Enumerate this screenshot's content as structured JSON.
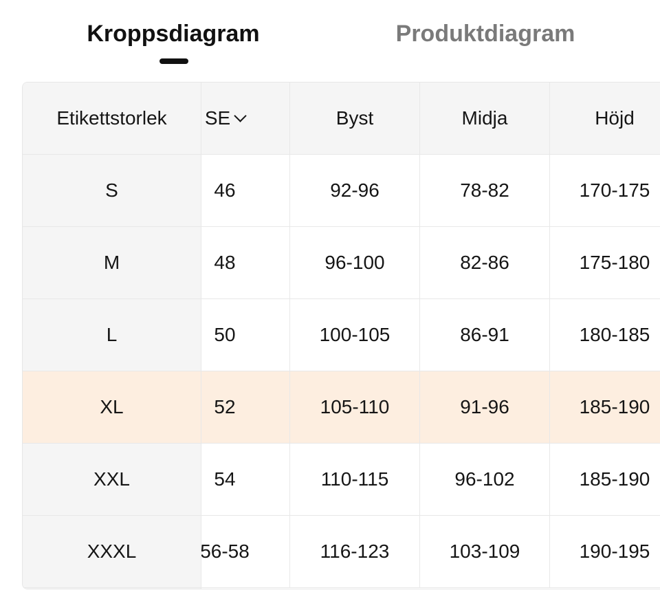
{
  "tabs": [
    {
      "label": "Kroppsdiagram",
      "active": true
    },
    {
      "label": "Produktdiagram",
      "active": false
    }
  ],
  "table": {
    "frozen_header": "Etikettstorlek",
    "headers": [
      "SE",
      "Byst",
      "Midja",
      "Höjd"
    ],
    "region_selector_icon": "chevron-down-icon",
    "highlight_color": "#fdeee0",
    "highlighted_row": "XL",
    "rows": [
      {
        "size": "S",
        "cells": [
          "46",
          "92-96",
          "78-82",
          "170-175"
        ]
      },
      {
        "size": "M",
        "cells": [
          "48",
          "96-100",
          "82-86",
          "175-180"
        ]
      },
      {
        "size": "L",
        "cells": [
          "50",
          "100-105",
          "86-91",
          "180-185"
        ]
      },
      {
        "size": "XL",
        "cells": [
          "52",
          "105-110",
          "91-96",
          "185-190"
        ]
      },
      {
        "size": "XXL",
        "cells": [
          "54",
          "110-115",
          "96-102",
          "185-190"
        ]
      },
      {
        "size": "XXXL",
        "cells": [
          "56-58",
          "116-123",
          "103-109",
          "190-195"
        ]
      }
    ]
  }
}
